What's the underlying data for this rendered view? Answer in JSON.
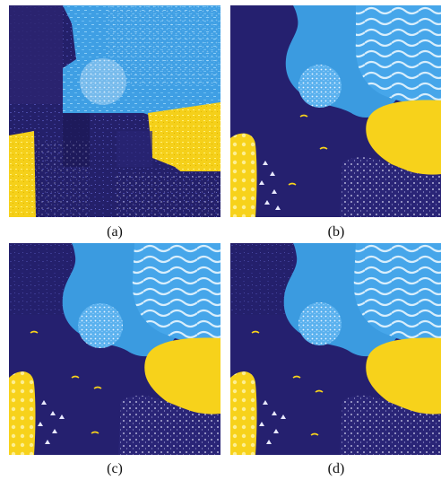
{
  "captions": {
    "a": "(a)",
    "b": "(b)",
    "c": "(c)",
    "d": "(d)"
  },
  "colors": {
    "navy": "#25206f",
    "deep_navy": "#1f1a62",
    "sky_blue": "#3b9be0",
    "light_blue": "#46a6ea",
    "yellow": "#f7d21b",
    "white": "#ffffff"
  }
}
